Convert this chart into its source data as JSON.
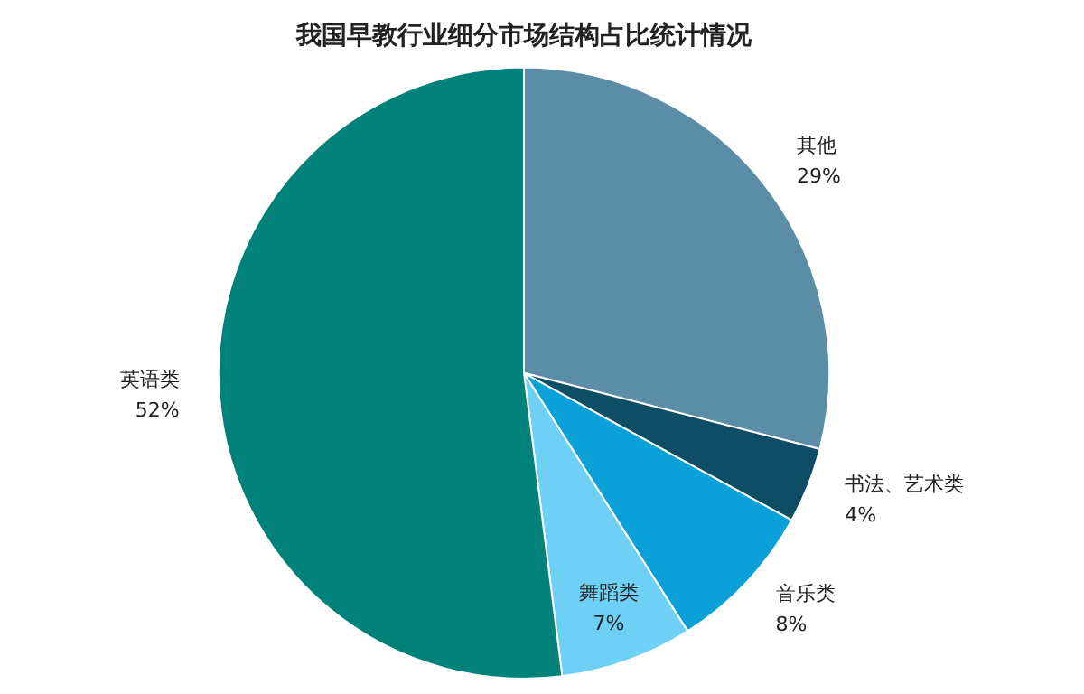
{
  "chart_data": {
    "type": "pie",
    "title": "我国早教行业细分市场结构占比统计情况",
    "categories": [
      "其他",
      "书法、艺术类",
      "音乐类",
      "舞蹈类",
      "英语类"
    ],
    "values": [
      29,
      4,
      8,
      7,
      52
    ],
    "value_labels": [
      "29%",
      "4%",
      "8%",
      "7%",
      "52%"
    ],
    "colors": [
      "#5b8ea6",
      "#0d4d66",
      "#0aa0d8",
      "#6fd0f5",
      "#00827a"
    ],
    "legend": false
  }
}
